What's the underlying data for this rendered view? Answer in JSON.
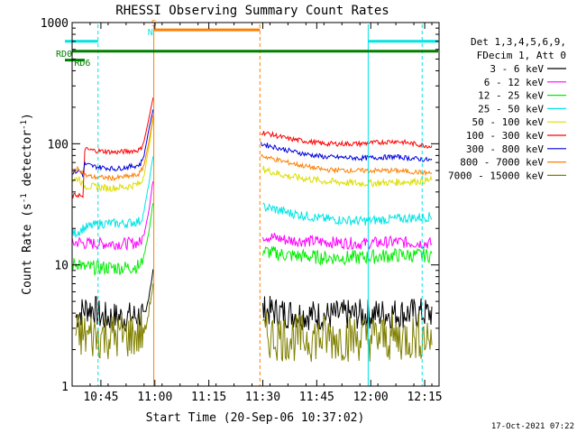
{
  "chart_data": {
    "type": "line",
    "title": "RHESSI Observing Summary Count Rates",
    "xlabel": "Start Time (20-Sep-06 10:37:02)",
    "ylabel_main": "Count Rate (s",
    "ylabel_sup1": "-1",
    "ylabel_mid": " detector",
    "ylabel_sup2": "-1",
    "ylabel_end": ")",
    "y_scale": "log",
    "ylim": [
      1,
      1000
    ],
    "xlim_minutes_after_1037": [
      0,
      102
    ],
    "x_ticks": [
      {
        "label": "10:45",
        "t": 8
      },
      {
        "label": "11:00",
        "t": 23
      },
      {
        "label": "11:15",
        "t": 38
      },
      {
        "label": "11:30",
        "t": 53
      },
      {
        "label": "11:45",
        "t": 68
      },
      {
        "label": "12:00",
        "t": 83
      },
      {
        "label": "12:15",
        "t": 98
      }
    ],
    "y_ticks": [
      {
        "label": "1",
        "v": 1
      },
      {
        "label": "10",
        "v": 10
      },
      {
        "label": "100",
        "v": 100
      },
      {
        "label": "1000",
        "v": 1000
      }
    ],
    "legend_header": [
      "Det 1,3,4,5,6,9,",
      "FDecim 1, Att 0"
    ],
    "legend_position": "right",
    "timestamp": "17-Oct-2021 07:22",
    "vertical_markers": [
      {
        "t": 0,
        "color": "#00e5e5",
        "style": "solid"
      },
      {
        "t": 7.2,
        "color": "#00e5e5",
        "style": "dashed"
      },
      {
        "t": 22.7,
        "color": "#ff7f00",
        "style": "solid"
      },
      {
        "t": 52.2,
        "color": "#ff7f00",
        "style": "dashed"
      },
      {
        "t": 82.3,
        "color": "#00e5e5",
        "style": "solid"
      },
      {
        "t": 97.3,
        "color": "#00e5e5",
        "style": "dashed"
      }
    ],
    "flags": [
      {
        "label": "S",
        "color": "#ff7f00",
        "t0": 22.7,
        "t1": 52.2,
        "v": 870
      },
      {
        "label": "N",
        "color": "#00e5e5",
        "t0": -4,
        "t1": 7.2,
        "v": 700
      },
      {
        "label": "N",
        "color": "#00e5e5",
        "t0": 82.3,
        "t1": 102,
        "v": 700
      },
      {
        "label": "RD0",
        "color": "#008000",
        "t0": 0,
        "t1": 102,
        "v": 580
      },
      {
        "label": "RD6",
        "color": "#008000",
        "t0": -4,
        "t1": 3.5,
        "v": 490
      }
    ],
    "flag_labels": [
      {
        "text": "S",
        "color": "#ff7f00",
        "t": 22.0,
        "v": 1000
      },
      {
        "text": "N",
        "color": "#00e5e5",
        "t": 21.0,
        "v": 840
      },
      {
        "text": "RD0",
        "color": "#008000",
        "t": -4.5,
        "v": 560
      },
      {
        "text": "RD6",
        "color": "#008000",
        "t": 0.6,
        "v": 470
      }
    ],
    "series": [
      {
        "name": "3 - 6 keV",
        "color": "#000000",
        "noise": 0.13,
        "points": [
          [
            1,
            3.7
          ],
          [
            2,
            4.0
          ],
          [
            4,
            4.4
          ],
          [
            6,
            4.4
          ],
          [
            8,
            3.7
          ],
          [
            15,
            3.7
          ],
          [
            19,
            3.8
          ],
          [
            20.5,
            4.0
          ],
          [
            21.5,
            6
          ],
          [
            22.5,
            9
          ]
        ],
        "points2": [
          [
            53,
            4.2
          ],
          [
            60,
            4.0
          ],
          [
            70,
            3.8
          ],
          [
            80,
            3.9
          ],
          [
            90,
            4.0
          ],
          [
            100,
            4.0
          ]
        ]
      },
      {
        "name": "6 - 12 keV",
        "color": "#ff00ff",
        "noise": 0.05,
        "points": [
          [
            0,
            15
          ],
          [
            2,
            15.5
          ],
          [
            3,
            15
          ],
          [
            10,
            15
          ],
          [
            15,
            15
          ],
          [
            19,
            15.3
          ],
          [
            20,
            18
          ],
          [
            21.5,
            30
          ],
          [
            22.5,
            50
          ]
        ],
        "points2": [
          [
            53,
            17.5
          ],
          [
            55,
            17
          ],
          [
            60,
            16
          ],
          [
            70,
            15.5
          ],
          [
            80,
            15
          ],
          [
            90,
            15.5
          ],
          [
            100,
            15
          ]
        ]
      },
      {
        "name": "12 - 25 keV",
        "color": "#00ee00",
        "noise": 0.06,
        "points": [
          [
            0,
            10
          ],
          [
            2,
            10.5
          ],
          [
            3,
            9.5
          ],
          [
            10,
            9.5
          ],
          [
            15,
            9.5
          ],
          [
            19,
            9.8
          ],
          [
            20,
            12
          ],
          [
            21.5,
            20
          ],
          [
            22.5,
            33
          ]
        ],
        "points2": [
          [
            53,
            13
          ],
          [
            56,
            12.5
          ],
          [
            60,
            12
          ],
          [
            70,
            11.5
          ],
          [
            80,
            11.5
          ],
          [
            90,
            12
          ],
          [
            100,
            12
          ]
        ]
      },
      {
        "name": "25 - 50 keV",
        "color": "#00e5e5",
        "noise": 0.04,
        "points": [
          [
            0,
            18
          ],
          [
            2,
            19
          ],
          [
            3,
            20
          ],
          [
            8,
            22
          ],
          [
            15,
            22
          ],
          [
            19,
            23
          ],
          [
            20,
            28
          ],
          [
            21.5,
            50
          ],
          [
            22.5,
            80
          ]
        ],
        "points2": [
          [
            53,
            30
          ],
          [
            56,
            29
          ],
          [
            60,
            27
          ],
          [
            70,
            24
          ],
          [
            80,
            23
          ],
          [
            90,
            24
          ],
          [
            100,
            25
          ]
        ]
      },
      {
        "name": "50 - 100 keV",
        "color": "#dddd00",
        "noise": 0.03,
        "points": [
          [
            0,
            50
          ],
          [
            2,
            52
          ],
          [
            3,
            45
          ],
          [
            10,
            43
          ],
          [
            15,
            44
          ],
          [
            19,
            47
          ],
          [
            20,
            55
          ],
          [
            21.5,
            100
          ],
          [
            22.5,
            160
          ]
        ],
        "points2": [
          [
            53,
            62
          ],
          [
            56,
            58
          ],
          [
            60,
            54
          ],
          [
            70,
            49
          ],
          [
            80,
            47
          ],
          [
            90,
            48
          ],
          [
            100,
            50
          ]
        ]
      },
      {
        "name": "100 - 300 keV",
        "color": "#ff0000",
        "noise": 0.02,
        "points": [
          [
            0,
            37
          ],
          [
            2,
            38
          ],
          [
            3,
            35
          ],
          [
            3.5,
            90
          ],
          [
            6,
            88
          ],
          [
            12,
            85
          ],
          [
            18,
            88
          ],
          [
            19,
            90
          ],
          [
            20,
            105
          ],
          [
            21.5,
            170
          ],
          [
            22.5,
            240
          ]
        ],
        "points2": [
          [
            52.5,
            125
          ],
          [
            55,
            120
          ],
          [
            60,
            110
          ],
          [
            65,
            105
          ],
          [
            70,
            100
          ],
          [
            80,
            100
          ],
          [
            90,
            105
          ],
          [
            100,
            95
          ]
        ]
      },
      {
        "name": "300 - 800 keV",
        "color": "#0000dd",
        "noise": 0.02,
        "points": [
          [
            0,
            58
          ],
          [
            2,
            60
          ],
          [
            3,
            55
          ],
          [
            3.5,
            68
          ],
          [
            6,
            65
          ],
          [
            12,
            62
          ],
          [
            18,
            66
          ],
          [
            19,
            68
          ],
          [
            20,
            80
          ],
          [
            21.5,
            140
          ],
          [
            22.5,
            190
          ]
        ],
        "points2": [
          [
            52.5,
            100
          ],
          [
            55,
            96
          ],
          [
            60,
            88
          ],
          [
            65,
            82
          ],
          [
            70,
            78
          ],
          [
            80,
            76
          ],
          [
            90,
            78
          ],
          [
            100,
            73
          ]
        ]
      },
      {
        "name": "800 - 7000 keV",
        "color": "#ff7f00",
        "noise": 0.02,
        "points": [
          [
            0,
            60
          ],
          [
            2,
            62
          ],
          [
            3,
            57
          ],
          [
            3.5,
            55
          ],
          [
            6,
            53
          ],
          [
            12,
            52
          ],
          [
            18,
            55
          ],
          [
            19,
            58
          ],
          [
            20,
            67
          ],
          [
            21.5,
            110
          ],
          [
            22.5,
            170
          ]
        ],
        "points2": [
          [
            52.5,
            80
          ],
          [
            55,
            76
          ],
          [
            60,
            70
          ],
          [
            65,
            65
          ],
          [
            70,
            61
          ],
          [
            80,
            60
          ],
          [
            90,
            60
          ],
          [
            100,
            57
          ]
        ]
      },
      {
        "name": "7000 - 15000 keV",
        "color": "#808000",
        "noise": 0.2,
        "points": [
          [
            1,
            2.6
          ],
          [
            8,
            2.6
          ],
          [
            15,
            2.6
          ],
          [
            19,
            2.7
          ],
          [
            20.5,
            3.0
          ],
          [
            21.5,
            4.5
          ],
          [
            22.5,
            7
          ]
        ],
        "points2": [
          [
            53,
            2.6
          ],
          [
            60,
            2.5
          ],
          [
            70,
            2.5
          ],
          [
            80,
            2.5
          ],
          [
            90,
            2.5
          ],
          [
            100,
            2.6
          ]
        ]
      }
    ]
  }
}
